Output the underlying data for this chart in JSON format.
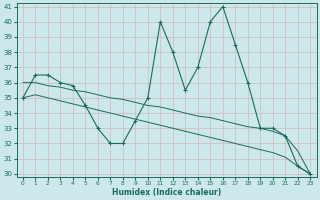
{
  "xlabel": "Humidex (Indice chaleur)",
  "x": [
    0,
    1,
    2,
    3,
    4,
    5,
    6,
    7,
    8,
    9,
    10,
    11,
    12,
    13,
    14,
    15,
    16,
    17,
    18,
    19,
    20,
    21,
    22,
    23
  ],
  "y_main": [
    35,
    36.5,
    36.5,
    36,
    35.8,
    34.5,
    33,
    32,
    32,
    33.5,
    35,
    40,
    38,
    35.5,
    37,
    40,
    41,
    38.5,
    36,
    33,
    33,
    32.5,
    30.5,
    30
  ],
  "y_trend1": [
    36,
    36,
    35.8,
    35.7,
    35.5,
    35.4,
    35.2,
    35.0,
    34.9,
    34.7,
    34.5,
    34.4,
    34.2,
    34.0,
    33.8,
    33.7,
    33.5,
    33.3,
    33.1,
    33.0,
    32.8,
    32.5,
    31.5,
    30.0
  ],
  "y_trend2": [
    35,
    35.2,
    35.0,
    34.8,
    34.6,
    34.4,
    34.2,
    34.0,
    33.8,
    33.6,
    33.4,
    33.2,
    33.0,
    32.8,
    32.6,
    32.4,
    32.2,
    32.0,
    31.8,
    31.6,
    31.4,
    31.1,
    30.5,
    30.0
  ],
  "ylim": [
    30,
    41
  ],
  "xlim": [
    -0.5,
    23.5
  ],
  "yticks": [
    30,
    31,
    32,
    33,
    34,
    35,
    36,
    37,
    38,
    39,
    40,
    41
  ],
  "xticks": [
    0,
    1,
    2,
    3,
    4,
    5,
    6,
    7,
    8,
    9,
    10,
    11,
    12,
    13,
    14,
    15,
    16,
    17,
    18,
    19,
    20,
    21,
    22,
    23
  ],
  "line_color": "#1a6b5a",
  "bg_color": "#cce8ea",
  "grid_color": "#b8d8da",
  "marker": "+"
}
